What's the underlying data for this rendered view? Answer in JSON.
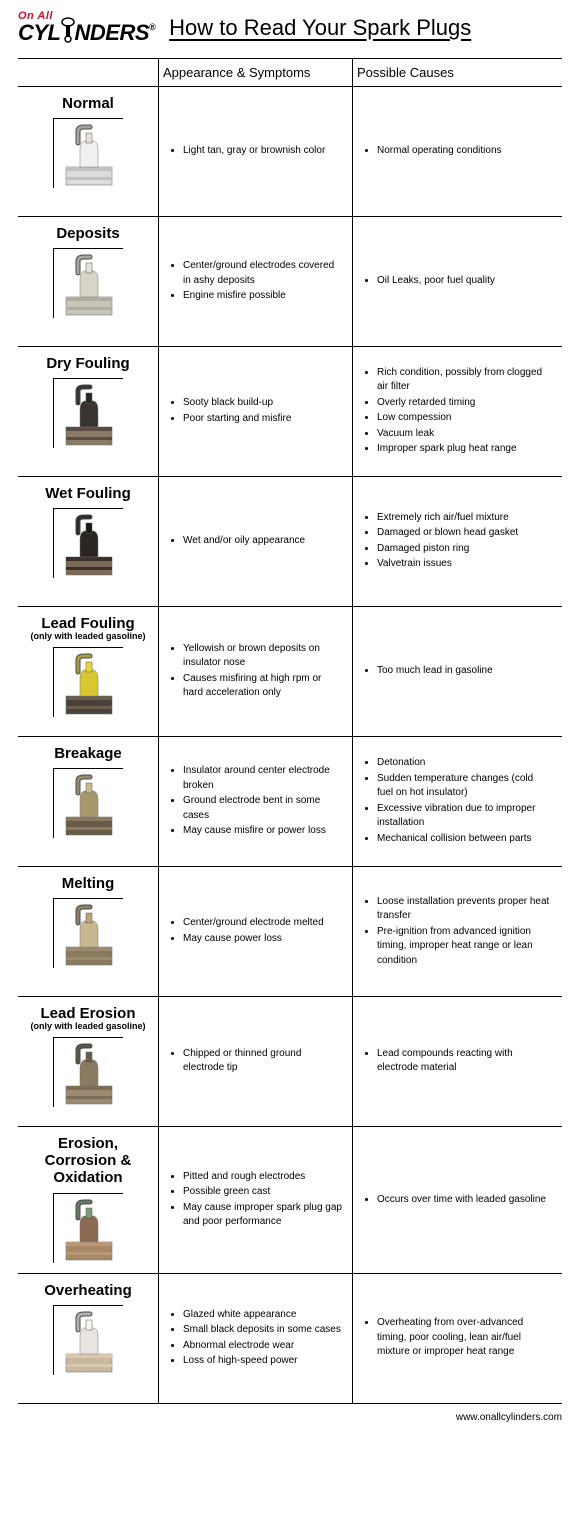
{
  "header": {
    "logo_top": "On All",
    "logo_bottom_left": "CYL",
    "logo_bottom_right": "NDERS",
    "title": "How to Read Your Spark Plugs"
  },
  "column_headers": {
    "appearance": "Appearance & Symptoms",
    "causes": "Possible Causes"
  },
  "rows": [
    {
      "title": "Normal",
      "subtitle": "",
      "plug": {
        "tip": "#e8e0d5",
        "body": "#f0f0f0",
        "hex": "#dcdcdc",
        "ring": "#c0c0c0"
      },
      "symptoms": [
        "Light tan, gray or brownish color"
      ],
      "causes": [
        "Normal operating conditions"
      ]
    },
    {
      "title": "Deposits",
      "subtitle": "",
      "plug": {
        "tip": "#e8e2d4",
        "body": "#d8d4c8",
        "hex": "#c8c4b8",
        "ring": "#b0aca0"
      },
      "symptoms": [
        "Center/ground electrodes covered in ashy deposits",
        "Engine misfire possible"
      ],
      "causes": [
        "Oil Leaks, poor fuel quality"
      ]
    },
    {
      "title": "Dry Fouling",
      "subtitle": "",
      "plug": {
        "tip": "#2a2624",
        "body": "#3a3430",
        "hex": "#8a7a68",
        "ring": "#5a4e44"
      },
      "symptoms": [
        "Sooty black build-up",
        "Poor starting and misfire"
      ],
      "causes": [
        "Rich condition, possibly from clogged air filter",
        "Overly retarded timing",
        "Low compession",
        "Vacuum leak",
        "Improper spark plug heat range"
      ]
    },
    {
      "title": "Wet Fouling",
      "subtitle": "",
      "plug": {
        "tip": "#1a1816",
        "body": "#2a2622",
        "hex": "#7a6a58",
        "ring": "#3a322a"
      },
      "symptoms": [
        "Wet and/or oily appearance"
      ],
      "causes": [
        "Extremely rich air/fuel mixture",
        "Damaged or blown head gasket",
        "Damaged piston ring",
        "Valvetrain issues"
      ]
    },
    {
      "title": "Lead Fouling",
      "subtitle": "(only with leaded gasoline)",
      "plug": {
        "tip": "#e6d838",
        "body": "#d8c830",
        "hex": "#4a4238",
        "ring": "#6a5e50"
      },
      "symptoms": [
        "Yellowish or brown deposits on insulator nose",
        "Causes misfiring at high rpm or hard acceleration only"
      ],
      "causes": [
        "Too much lead in gasoline"
      ]
    },
    {
      "title": "Breakage",
      "subtitle": "",
      "plug": {
        "tip": "#c8b890",
        "body": "#a89870",
        "hex": "#6a5a48",
        "ring": "#8a7a60"
      },
      "symptoms": [
        "Insulator around center electrode broken",
        "Ground electrode bent in some cases",
        "May cause misfire or power loss"
      ],
      "causes": [
        "Detonation",
        "Sudden temperature changes (cold fuel on hot insulator)",
        "Excessive vibration due to improper installation",
        "Mechanical collision between parts"
      ]
    },
    {
      "title": "Melting",
      "subtitle": "",
      "plug": {
        "tip": "#b8a478",
        "body": "#c8b890",
        "hex": "#8a7a60",
        "ring": "#9a8a70"
      },
      "symptoms": [
        "Center/ground electrode melted",
        "May cause power loss"
      ],
      "causes": [
        "Loose installation prevents proper heat transfer",
        "Pre-ignition from advanced ignition timing, improper heat range or lean condition"
      ]
    },
    {
      "title": "Lead Erosion",
      "subtitle": "(only with leaded gasoline)",
      "plug": {
        "tip": "#6a5e48",
        "body": "#8a7a60",
        "hex": "#9a8a70",
        "ring": "#7a6e58"
      },
      "symptoms": [
        "Chipped or thinned ground electrode tip"
      ],
      "causes": [
        "Lead compounds reacting with electrode material"
      ]
    },
    {
      "title": "Erosion, Corrosion & Oxidation",
      "subtitle": "",
      "plug": {
        "tip": "#7a9a78",
        "body": "#8a6a50",
        "hex": "#a88a68",
        "ring": "#b89878"
      },
      "symptoms": [
        "Pitted and rough electrodes",
        "Possible green cast",
        "May cause improper spark plug gap and poor performance"
      ],
      "causes": [
        "Occurs over time with leaded gasoline"
      ]
    },
    {
      "title": "Overheating",
      "subtitle": "",
      "plug": {
        "tip": "#f8f4f0",
        "body": "#e8e4e0",
        "hex": "#c8b8a0",
        "ring": "#d8c8b0"
      },
      "symptoms": [
        "Glazed white appearance",
        "Small black deposits in some cases",
        "Abnormal electrode wear",
        "Loss of high-speed power"
      ],
      "causes": [
        "Overheating from over-advanced timing, poor cooling, lean air/fuel mixture or improper heat range"
      ]
    }
  ],
  "footer": "www.onallcylinders.com"
}
